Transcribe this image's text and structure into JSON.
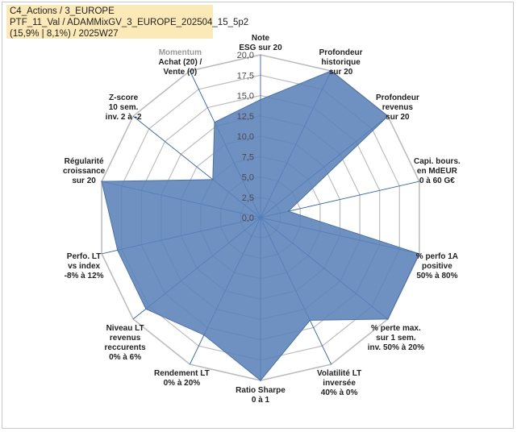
{
  "title_lines": [
    "C4_Actions / 3_EUROPE",
    "PTF_11_Val / ADAMMixGV_3_EUROPE_202504_15_5p2",
    "(15,9% | 8,1%) / 2025W27"
  ],
  "chart_data": {
    "type": "radar",
    "rlim": [
      0,
      20
    ],
    "tick_values": [
      0,
      2.5,
      5,
      7.5,
      10,
      12.5,
      15,
      17.5,
      20
    ],
    "tick_labels": [
      "0,0",
      "2,5",
      "5,0",
      "7,5",
      "10,0",
      "12,5",
      "15,0",
      "17,5",
      "20,0"
    ],
    "grid": true,
    "legend": "none",
    "fill_color": "#5a82b8",
    "grid_color": "#bdbdbd",
    "spoke_color": "#2f62b3",
    "categories": [
      {
        "lines": [
          "Note",
          "ESG sur 20"
        ]
      },
      {
        "lines": [
          "Profondeur",
          "historique",
          "sur 20"
        ]
      },
      {
        "lines": [
          "Profondeur",
          "revenus",
          "sur 20"
        ]
      },
      {
        "lines": [
          "Capi. bours.",
          "en MdEUR",
          "0 à 60 G€"
        ]
      },
      {
        "lines": [
          "% perfo 1A",
          "positive",
          "50% à 80%"
        ]
      },
      {
        "lines": [
          "% perte max.",
          "sur 1 sem.",
          "inv. 50% à 20%"
        ]
      },
      {
        "lines": [
          "Volatilité LT",
          "inversée",
          "40% à 0%"
        ]
      },
      {
        "lines": [
          "Ratio Sharpe",
          "0 à 1"
        ]
      },
      {
        "lines": [
          "Rendement LT",
          "0% à 20%"
        ]
      },
      {
        "lines": [
          "Niveau LT",
          "revenus",
          "reccurents",
          "0% à 6%"
        ]
      },
      {
        "lines": [
          "Perfo. LT",
          "vs index",
          "-8% à 12%"
        ]
      },
      {
        "lines": [
          "Régularité",
          "croissance",
          "sur 20"
        ]
      },
      {
        "lines": [
          "Z-score",
          "10 sem.",
          "inv. 2 à -2"
        ]
      },
      {
        "lines": [
          "Momentum",
          "Achat (20) /",
          "Vente (0)"
        ]
      }
    ],
    "values": [
      14.5,
      20,
      20,
      3.5,
      20,
      20,
      14,
      20,
      16,
      18,
      18,
      20,
      7.5,
      13
    ]
  }
}
